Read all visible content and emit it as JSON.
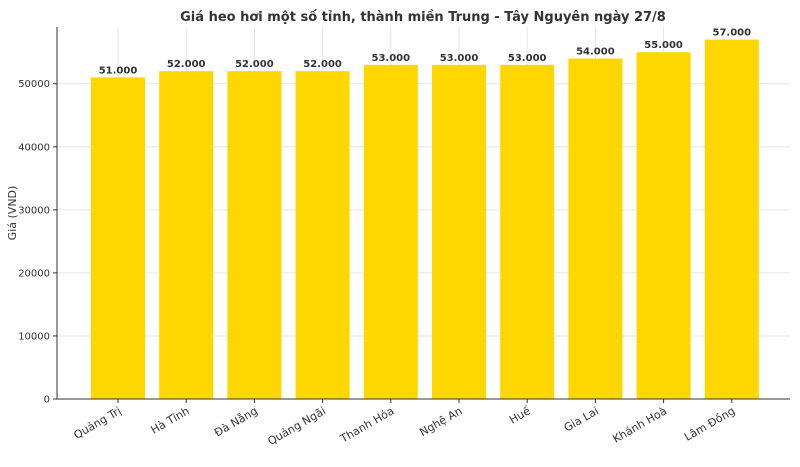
{
  "chart_data": {
    "type": "bar",
    "title": "Giá heo hơi một số tỉnh, thành miền Trung - Tây Nguyên ngày 27/8",
    "xlabel": "",
    "ylabel": "Giá (VND)",
    "categories": [
      "Quảng Trị",
      "Hà Tĩnh",
      "Đà Nẵng",
      "Quảng Ngãi",
      "Thanh Hóa",
      "Nghệ An",
      "Huế",
      "Gia Lai",
      "Khánh Hoà",
      "Lâm Đồng"
    ],
    "values": [
      51000,
      52000,
      52000,
      52000,
      53000,
      53000,
      53000,
      54000,
      55000,
      57000
    ],
    "data_labels": [
      "51.000",
      "52.000",
      "52.000",
      "52.000",
      "53.000",
      "53.000",
      "53.000",
      "54.000",
      "55.000",
      "57.000"
    ],
    "yticks": [
      0,
      10000,
      20000,
      30000,
      40000,
      50000
    ],
    "ytick_labels": [
      "0",
      "10000",
      "20000",
      "30000",
      "40000",
      "50000"
    ],
    "ylim": [
      0,
      59000
    ],
    "grid": true,
    "colors": {
      "bar": "#FFD700",
      "text": "#333333",
      "grid": "#e6e6e6"
    }
  }
}
